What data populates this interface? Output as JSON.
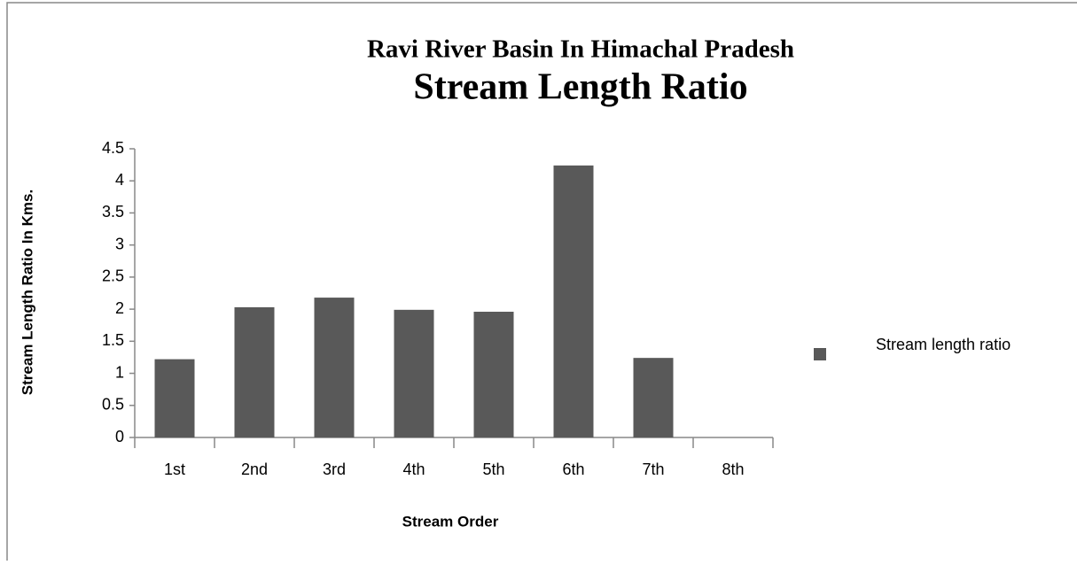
{
  "chart_data": {
    "type": "bar",
    "title": "Ravi River Basin In Himachal Pradesh",
    "subtitle": "Stream Length Ratio",
    "x_label": "Stream Order",
    "y_label": "Stream Length Ratio In Kms.",
    "categories": [
      "1st",
      "2nd",
      "3rd",
      "4th",
      "5th",
      "6th",
      "7th",
      "8th"
    ],
    "series": [
      {
        "name": "Stream length ratio",
        "color": "#595959",
        "values": [
          1.22,
          2.03,
          2.18,
          1.99,
          1.96,
          4.24,
          1.24,
          0
        ]
      }
    ],
    "ylim": [
      0,
      4.5
    ],
    "yticks": [
      0,
      0.5,
      1,
      1.5,
      2,
      2.5,
      3,
      3.5,
      4,
      4.5
    ],
    "legend": "right"
  }
}
